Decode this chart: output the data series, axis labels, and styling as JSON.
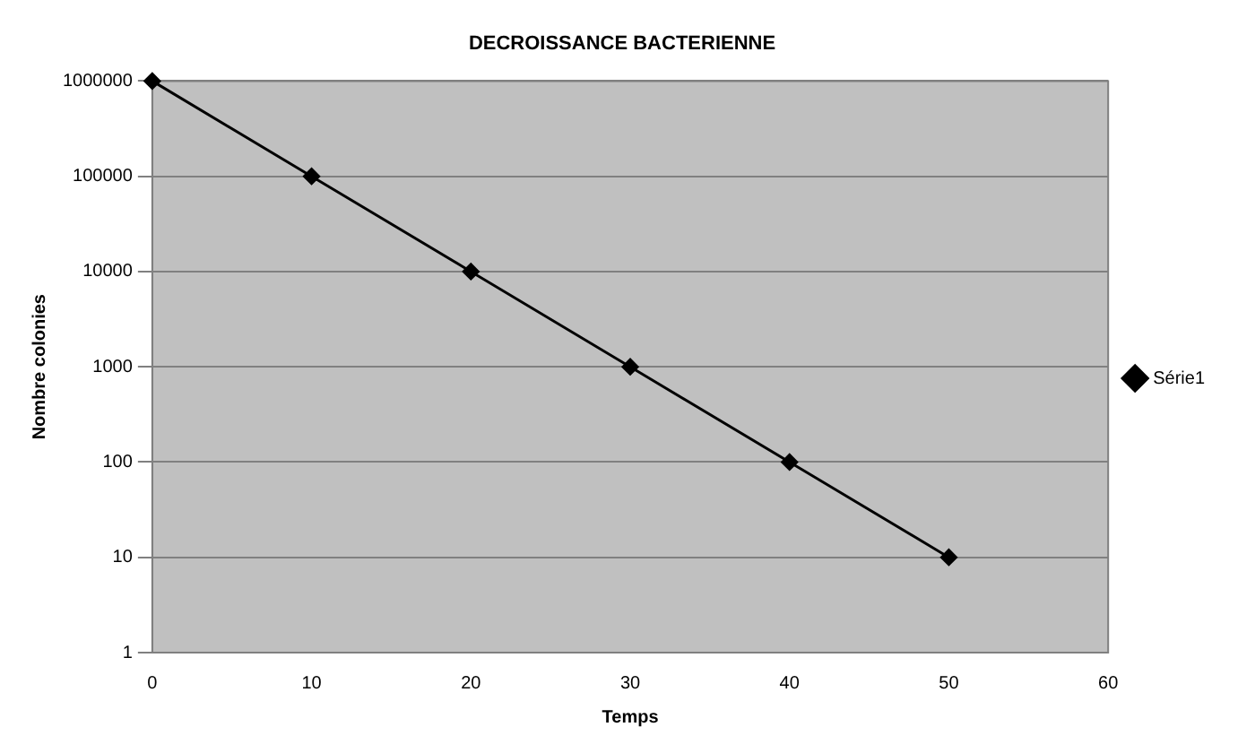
{
  "chart_data": {
    "type": "line",
    "title": "DECROISSANCE BACTERIENNE",
    "xlabel": "Temps",
    "ylabel": "Nombre colonies",
    "x": [
      0,
      10,
      20,
      30,
      40,
      50
    ],
    "series": [
      {
        "name": "Série1",
        "color": "#000000",
        "values": [
          1000000,
          100000,
          10000,
          1000,
          100,
          10
        ]
      }
    ],
    "xlim": [
      0,
      60
    ],
    "xticks": [
      0,
      10,
      20,
      30,
      40,
      50,
      60
    ],
    "ylim": [
      1,
      1000000
    ],
    "yticks": [
      1,
      10,
      100,
      1000,
      10000,
      100000,
      1000000
    ],
    "log": "y",
    "grid": "y",
    "legend": "right",
    "marker": "diamond",
    "line_style": "solid"
  }
}
